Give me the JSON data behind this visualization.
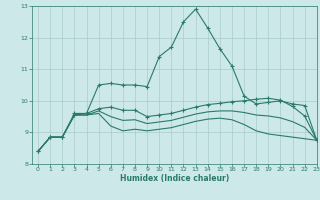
{
  "title": "",
  "xlabel": "Humidex (Indice chaleur)",
  "xlim": [
    -0.5,
    23
  ],
  "ylim": [
    8,
    13
  ],
  "yticks": [
    8,
    9,
    10,
    11,
    12,
    13
  ],
  "xticks": [
    0,
    1,
    2,
    3,
    4,
    5,
    6,
    7,
    8,
    9,
    10,
    11,
    12,
    13,
    14,
    15,
    16,
    17,
    18,
    19,
    20,
    21,
    22,
    23
  ],
  "bg_color": "#cce8e8",
  "grid_color": "#aacccc",
  "line_color": "#2a7a6a",
  "curve1_x": [
    0,
    1,
    2,
    3,
    4,
    5,
    6,
    7,
    8,
    9,
    10,
    11,
    12,
    13,
    14,
    15,
    16,
    17,
    18,
    19,
    20,
    21,
    22,
    23
  ],
  "curve1_y": [
    8.4,
    8.85,
    8.85,
    9.6,
    9.6,
    10.5,
    10.55,
    10.5,
    10.5,
    10.45,
    11.4,
    11.7,
    12.5,
    12.9,
    12.3,
    11.65,
    11.1,
    10.15,
    9.9,
    9.95,
    10.0,
    9.9,
    9.85,
    8.75
  ],
  "curve2_x": [
    0,
    1,
    2,
    3,
    4,
    5,
    6,
    7,
    8,
    9,
    10,
    11,
    12,
    13,
    14,
    15,
    16,
    17,
    18,
    19,
    20,
    21,
    22,
    23
  ],
  "curve2_y": [
    8.4,
    8.85,
    8.85,
    9.55,
    9.6,
    9.75,
    9.8,
    9.7,
    9.7,
    9.5,
    9.55,
    9.6,
    9.7,
    9.8,
    9.88,
    9.92,
    9.97,
    10.0,
    10.05,
    10.08,
    10.02,
    9.82,
    9.52,
    8.75
  ],
  "curve3_x": [
    0,
    1,
    2,
    3,
    4,
    5,
    6,
    7,
    8,
    9,
    10,
    11,
    12,
    13,
    14,
    15,
    16,
    17,
    18,
    19,
    20,
    21,
    22,
    23
  ],
  "curve3_y": [
    8.4,
    8.85,
    8.85,
    9.55,
    9.55,
    9.6,
    9.2,
    9.05,
    9.1,
    9.05,
    9.1,
    9.15,
    9.25,
    9.35,
    9.42,
    9.45,
    9.4,
    9.25,
    9.05,
    8.95,
    8.9,
    8.85,
    8.8,
    8.75
  ],
  "curve4_x": [
    0,
    1,
    2,
    3,
    4,
    5,
    6,
    7,
    8,
    9,
    10,
    11,
    12,
    13,
    14,
    15,
    16,
    17,
    18,
    19,
    20,
    21,
    22,
    23
  ],
  "curve4_y": [
    8.4,
    8.85,
    8.85,
    9.55,
    9.55,
    9.68,
    9.5,
    9.38,
    9.4,
    9.28,
    9.33,
    9.38,
    9.48,
    9.58,
    9.65,
    9.68,
    9.68,
    9.63,
    9.55,
    9.52,
    9.46,
    9.34,
    9.16,
    8.75
  ],
  "marker_curves": [
    0,
    1
  ],
  "font_color": "#2a7a6a"
}
